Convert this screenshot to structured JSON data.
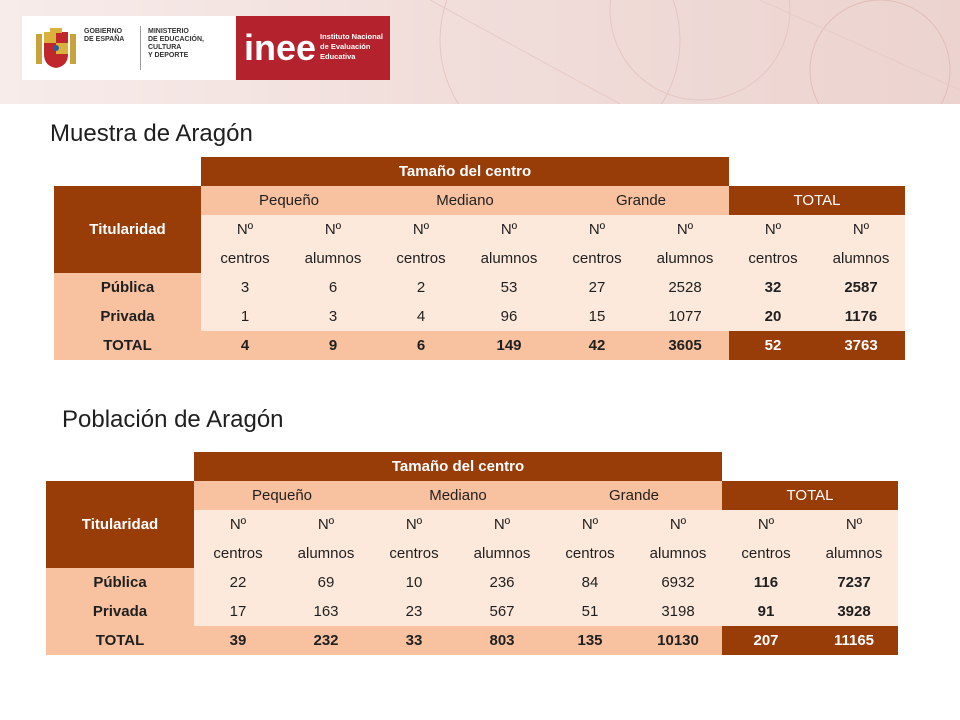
{
  "header": {
    "gobierno_lines": [
      "GOBIERNO",
      "DE ESPAÑA"
    ],
    "ministerio_lines": [
      "MINISTERIO",
      "DE EDUCACIÓN, CULTURA",
      "Y DEPORTE"
    ],
    "inee_word": "inee",
    "inee_lines": [
      "Instituto Nacional",
      "de Evaluación",
      "Educativa"
    ]
  },
  "tables": [
    {
      "title": "Muestra de Aragón",
      "group_header": "Tamaño del centro",
      "row_header": "Titularidad",
      "size_headers": [
        "Pequeño",
        "Mediano",
        "Grande",
        "TOTAL"
      ],
      "sub_top": "Nº",
      "sub_centros": "centros",
      "sub_alumnos": "alumnos",
      "rows": [
        {
          "label": "Pública",
          "values": [
            "3",
            "6",
            "2",
            "53",
            "27",
            "2528",
            "32",
            "2587"
          ]
        },
        {
          "label": "Privada",
          "values": [
            "1",
            "3",
            "4",
            "96",
            "15",
            "1077",
            "20",
            "1176"
          ]
        }
      ],
      "total": {
        "label": "TOTAL",
        "values": [
          "4",
          "9",
          "6",
          "149",
          "42",
          "3605",
          "52",
          "3763"
        ]
      }
    },
    {
      "title": "Población de Aragón",
      "group_header": "Tamaño del centro",
      "row_header": "Titularidad",
      "size_headers": [
        "Pequeño",
        "Mediano",
        "Grande",
        "TOTAL"
      ],
      "sub_top": "Nº",
      "sub_centros": "centros",
      "sub_alumnos": "alumnos",
      "rows": [
        {
          "label": "Pública",
          "values": [
            "22",
            "69",
            "10",
            "236",
            "84",
            "6932",
            "116",
            "7237"
          ]
        },
        {
          "label": "Privada",
          "values": [
            "17",
            "163",
            "23",
            "567",
            "51",
            "3198",
            "91",
            "3928"
          ]
        }
      ],
      "total": {
        "label": "TOTAL",
        "values": [
          "39",
          "232",
          "33",
          "803",
          "135",
          "10130",
          "207",
          "11165"
        ]
      }
    }
  ],
  "colors": {
    "dark": "#983c08",
    "mid": "#f8c2a0",
    "light": "#fde9dc",
    "brand_red": "#b4232d"
  }
}
